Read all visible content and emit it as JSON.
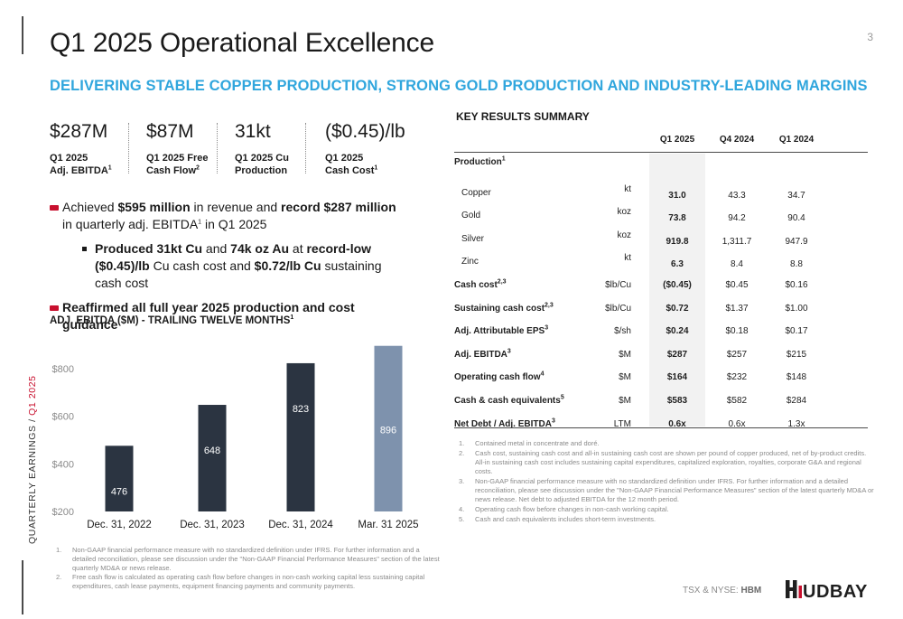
{
  "page": {
    "title": "Q1 2025 Operational Excellence",
    "page_number": "3",
    "subtitle": "DELIVERING STABLE COPPER PRODUCTION, STRONG GOLD PRODUCTION AND INDUSTRY-LEADING MARGINS",
    "side_label_prefix": "QUARTERLY EARNINGS / ",
    "side_label_accent": "Q1 2025"
  },
  "kpis": [
    {
      "value": "$287M",
      "label_line1": "Q1 2025",
      "label_line2": "Adj. EBITDA",
      "sup": "1"
    },
    {
      "value": "$87M",
      "label_line1": "Q1 2025 Free",
      "label_line2": "Cash Flow",
      "sup": "2"
    },
    {
      "value": "31kt",
      "label_line1": "Q1 2025 Cu",
      "label_line2": "Production",
      "sup": ""
    },
    {
      "value": "($0.45)/lb",
      "label_line1": "Q1 2025",
      "label_line2": "Cash Cost",
      "sup": "1"
    }
  ],
  "bullets": {
    "b1_pre": "Achieved ",
    "b1_bold1": "$595 million",
    "b1_mid": " in revenue and ",
    "b1_bold2": "record $287 million",
    "b1_post1": " in quarterly adj. EBITDA",
    "b1_sup": "1",
    "b1_post2": " in Q1 2025",
    "b2_bold1": "Produced 31kt Cu",
    "b2_mid1": " and ",
    "b2_bold2": "74k oz Au",
    "b2_mid2": " at ",
    "b2_bold3": "record-low ($0.45)/lb",
    "b2_mid3": " Cu cash cost and ",
    "b2_bold4": "$0.72/lb Cu",
    "b2_post": " sustaining cash cost",
    "b3": "Reaffirmed all full year 2025 production and cost guidance"
  },
  "chart_title": "ADJ. EBITDA ($M) - TRAILING TWELVE MONTHS",
  "chart_title_sup": "1",
  "chart_data": {
    "type": "bar",
    "title": "ADJ. EBITDA ($M) - TRAILING TWELVE MONTHS",
    "categories": [
      "Dec. 31, 2022",
      "Dec. 31, 2023",
      "Dec. 31, 2024",
      "Mar. 31 2025"
    ],
    "values": [
      476,
      648,
      823,
      896
    ],
    "value_labels": [
      "476",
      "648",
      "823",
      "896"
    ],
    "y_ticks": [
      "$200",
      "$400",
      "$600",
      "$800"
    ],
    "y_tick_values": [
      200,
      400,
      600,
      800
    ],
    "ylim": [
      200,
      900
    ],
    "grid": false,
    "colors": [
      "#2b3441",
      "#2b3441",
      "#2b3441",
      "#7e92ad"
    ]
  },
  "left_notes": [
    {
      "num": "1.",
      "text": "Non-GAAP financial performance measure with no standardized definition under IFRS. For further information and a detailed reconciliation, please see discussion under the \"Non-GAAP Financial Performance Measures\" section of the latest quarterly MD&A or news release."
    },
    {
      "num": "2.",
      "text": "Free cash flow is calculated as operating cash flow before changes in non-cash working capital less sustaining capital expenditures, cash lease payments, equipment financing payments and community payments."
    }
  ],
  "table": {
    "section_title": "KEY RESULTS SUMMARY",
    "columns": [
      "Q1 2025",
      "Q4 2024",
      "Q1 2024"
    ],
    "rows": [
      {
        "label": "Production",
        "sup": "1",
        "unit": "",
        "values": [
          "",
          "",
          ""
        ],
        "indent": false
      },
      {
        "label": "Copper",
        "sup": "",
        "unit": "kt",
        "values": [
          "31.0",
          "43.3",
          "34.7"
        ],
        "indent": true
      },
      {
        "label": "Gold",
        "sup": "",
        "unit": "koz",
        "values": [
          "73.8",
          "94.2",
          "90.4"
        ],
        "indent": true
      },
      {
        "label": "Silver",
        "sup": "",
        "unit": "koz",
        "values": [
          "919.8",
          "1,311.7",
          "947.9"
        ],
        "indent": true
      },
      {
        "label": "Zinc",
        "sup": "",
        "unit": "kt",
        "values": [
          "6.3",
          "8.4",
          "8.8"
        ],
        "indent": true
      },
      {
        "label": "Cash cost",
        "sup": "2,3",
        "unit": "$lb/Cu",
        "values": [
          "($0.45)",
          "$0.45",
          "$0.16"
        ],
        "indent": false
      },
      {
        "label": "Sustaining cash cost",
        "sup": "2,3",
        "unit": "$lb/Cu",
        "values": [
          "$0.72",
          "$1.37",
          "$1.00"
        ],
        "indent": false
      },
      {
        "label": "Adj. Attributable EPS",
        "sup": "3",
        "unit": "$/sh",
        "values": [
          "$0.24",
          "$0.18",
          "$0.17"
        ],
        "indent": false
      },
      {
        "label": "Adj. EBITDA",
        "sup": "3",
        "unit": "$M",
        "values": [
          "$287",
          "$257",
          "$215"
        ],
        "indent": false
      },
      {
        "label": "Operating cash flow",
        "sup": "4",
        "unit": "$M",
        "values": [
          "$164",
          "$232",
          "$148"
        ],
        "indent": false
      },
      {
        "label": "Cash & cash equivalents",
        "sup": "5",
        "unit": "$M",
        "values": [
          "$583",
          "$582",
          "$284"
        ],
        "indent": false
      },
      {
        "label": "Net Debt / Adj. EBITDA",
        "sup": "3",
        "unit": "LTM",
        "values": [
          "0.6x",
          "0.6x",
          "1.3x"
        ],
        "indent": false
      }
    ]
  },
  "right_notes": [
    {
      "num": "1.",
      "text": "Contained metal in concentrate and doré."
    },
    {
      "num": "2.",
      "text": "Cash cost, sustaining cash cost and all-in sustaining cash cost are shown per pound of copper produced, net of by-product credits. All-in sustaining cash cost includes sustaining capital expenditures, capitalized exploration, royalties, corporate G&A and regional costs."
    },
    {
      "num": "3.",
      "text": "Non-GAAP financial performance measure with no standardized definition under IFRS. For further information and a detailed reconciliation, please see discussion under the \"Non-GAAP Financial Performance Measures\" section of the latest quarterly MD&A or news release. Net debt to adjusted EBITDA for the 12 month period."
    },
    {
      "num": "4.",
      "text": "Operating cash flow before changes in non-cash working capital."
    },
    {
      "num": "5.",
      "text": "Cash and cash equivalents includes short-term investments."
    }
  ],
  "footer": {
    "ticker_prefix": "TSX & NYSE: ",
    "ticker_symbol": "HBM",
    "logo_text": "HUDBAY"
  }
}
